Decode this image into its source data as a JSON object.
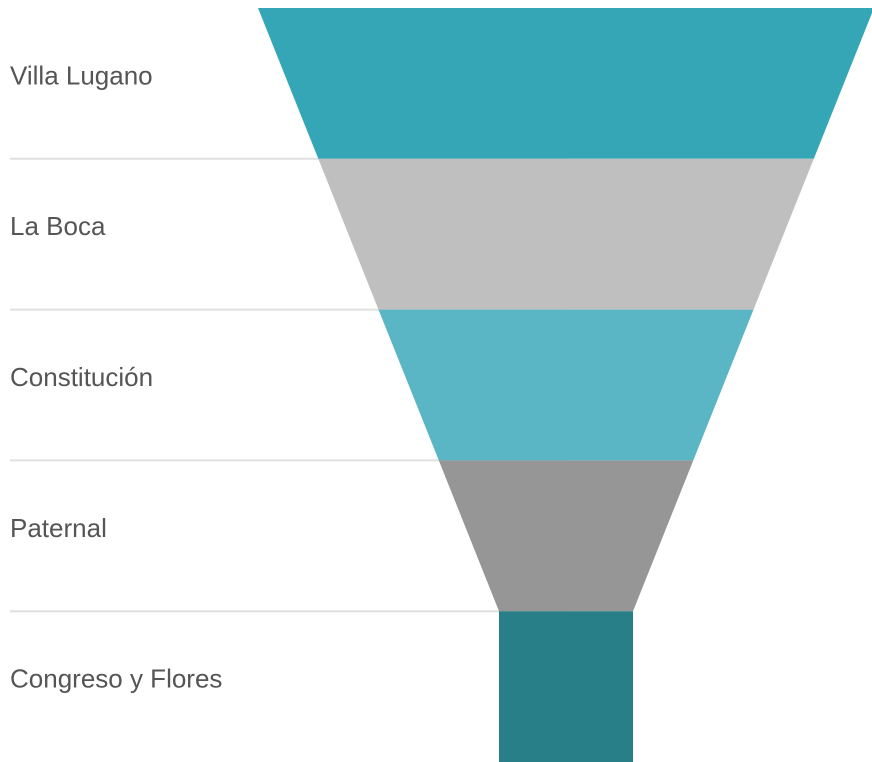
{
  "chart_data": {
    "type": "funnel",
    "title": "",
    "categories": [
      "Villa Lugano",
      "La Boca",
      "Constitución",
      "Paternal",
      "Congreso y Flores"
    ],
    "series": [
      {
        "values": [
          100,
          80,
          60,
          40,
          20
        ]
      }
    ],
    "colors": [
      "#35a6b6",
      "#bfbfbf",
      "#5ab6c4",
      "#969696",
      "#287f87"
    ],
    "legend": "none",
    "grid": false
  }
}
